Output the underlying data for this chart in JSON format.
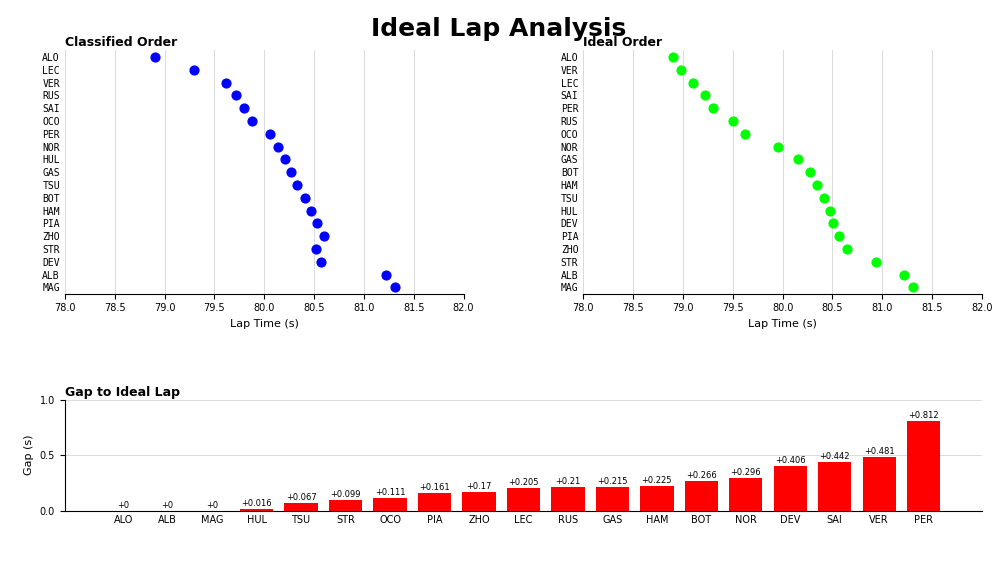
{
  "title": "Ideal Lap Analysis",
  "title_fontsize": 18,
  "title_fontweight": "bold",
  "classified_order": {
    "subtitle": "Classified Order",
    "drivers": [
      "ALO",
      "LEC",
      "VER",
      "RUS",
      "SAI",
      "OCO",
      "PER",
      "NOR",
      "HUL",
      "GAS",
      "TSU",
      "BOT",
      "HAM",
      "PIA",
      "ZHO",
      "STR",
      "DEV",
      "ALB",
      "MAG"
    ],
    "lap_times": [
      78.9,
      79.3,
      79.62,
      79.72,
      79.8,
      79.88,
      80.06,
      80.14,
      80.21,
      80.27,
      80.33,
      80.41,
      80.47,
      80.53,
      80.6,
      80.52,
      80.57,
      81.22,
      81.31
    ],
    "color": "#0000FF",
    "xlim": [
      78,
      82
    ],
    "xticks": [
      78,
      78.5,
      79,
      79.5,
      80,
      80.5,
      81,
      81.5,
      82
    ],
    "xlabel": "Lap Time (s)"
  },
  "ideal_order": {
    "subtitle": "Ideal Order",
    "drivers": [
      "ALO",
      "VER",
      "LEC",
      "SAI",
      "PER",
      "RUS",
      "OCO",
      "NOR",
      "GAS",
      "BOT",
      "HAM",
      "TSU",
      "HUL",
      "DEV",
      "PIA",
      "ZHO",
      "STR",
      "ALB",
      "MAG"
    ],
    "lap_times": [
      78.9,
      78.98,
      79.1,
      79.22,
      79.3,
      79.5,
      79.62,
      79.95,
      80.15,
      80.27,
      80.34,
      80.41,
      80.47,
      80.51,
      80.57,
      80.65,
      80.94,
      81.22,
      81.31
    ],
    "color": "#00FF00",
    "xlim": [
      78,
      82
    ],
    "xticks": [
      78,
      78.5,
      79,
      79.5,
      80,
      80.5,
      81,
      81.5,
      82
    ],
    "xlabel": "Lap Time (s)"
  },
  "gap_chart": {
    "subtitle": "Gap to Ideal Lap",
    "drivers": [
      "ALO",
      "ALB",
      "MAG",
      "HUL",
      "TSU",
      "STR",
      "OCO",
      "PIA",
      "ZHO",
      "LEC",
      "RUS",
      "GAS",
      "HAM",
      "BOT",
      "NOR",
      "DEV",
      "SAI",
      "VER",
      "PER"
    ],
    "gaps": [
      0.0,
      0.0,
      0.0,
      0.016,
      0.067,
      0.099,
      0.111,
      0.161,
      0.17,
      0.205,
      0.21,
      0.215,
      0.225,
      0.266,
      0.296,
      0.406,
      0.442,
      0.481,
      0.812
    ],
    "labels": [
      "+0",
      "+0",
      "+0",
      "+0.016",
      "+0.067",
      "+0.099",
      "+0.111",
      "+0.161",
      "+0.17",
      "+0.205",
      "+0.21",
      "+0.215",
      "+0.225",
      "+0.266",
      "+0.296",
      "+0.406",
      "+0.442",
      "+0.481",
      "+0.812"
    ],
    "color": "#FF0000",
    "ylabel": "Gap (s)",
    "ylim": [
      0,
      1
    ],
    "yticks": [
      0,
      0.5,
      1
    ]
  },
  "bg_color": "#FFFFFF",
  "text_color": "#000000",
  "subtitle_fontsize": 9,
  "subtitle_fontweight": "bold",
  "axis_label_fontsize": 8,
  "tick_fontsize": 7,
  "dot_size": 40
}
